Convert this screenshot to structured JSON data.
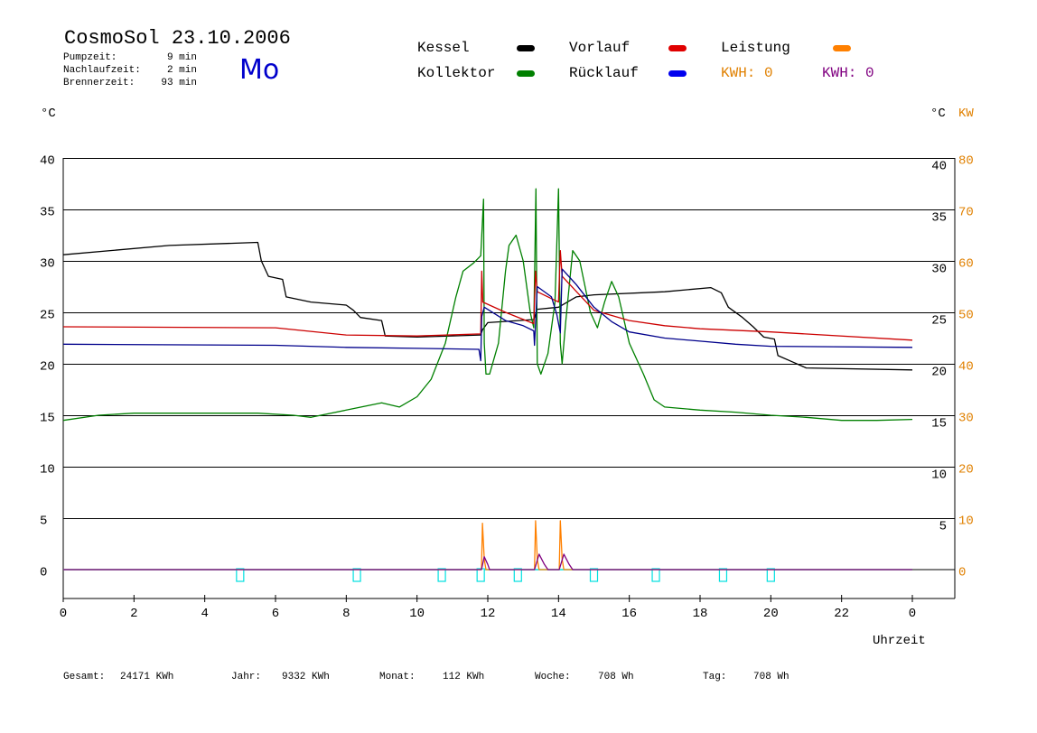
{
  "header": {
    "title": "CosmoSol 23.10.2006",
    "day": "Mo",
    "stats": [
      {
        "label": "Pumpzeit:",
        "value": "9 min"
      },
      {
        "label": "Nachlaufzeit:",
        "value": "2 min"
      },
      {
        "label": "Brennerzeit:",
        "value": "93 min"
      }
    ]
  },
  "legend": {
    "kessel": "Kessel",
    "kollektor": "Kollektor",
    "vorlauf": "Vorlauf",
    "ruecklauf": "Rücklauf",
    "leistung": "Leistung",
    "kwh1": "KWH: 0",
    "kwh2": "KWH: 0"
  },
  "colors": {
    "kessel": "#000000",
    "kollektor": "#008000",
    "vorlauf": "#cc0000",
    "ruecklauf": "#00008b",
    "leistung": "#ff8000",
    "kwh2": "#800080",
    "baseline": "#00e0e0"
  },
  "axis": {
    "left_unit": "°C",
    "right_unit_c": "°C",
    "right_unit_kw": "KW",
    "xlabel": "Uhrzeit"
  },
  "footer": [
    {
      "label": "Gesamt:",
      "value": "24171 KWh"
    },
    {
      "label": "Jahr:",
      "value": "9332 KWh"
    },
    {
      "label": "Monat:",
      "value": "112 KWh"
    },
    {
      "label": "Woche:",
      "value": "708 Wh"
    },
    {
      "label": "Tag:",
      "value": "708 Wh"
    }
  ],
  "chart_data": {
    "type": "line",
    "xlabel": "Uhrzeit",
    "ylabel": "°C",
    "ylabel_right": "KW",
    "xlim": [
      0,
      24
    ],
    "ylim": [
      0,
      40
    ],
    "ylim_right_kw": [
      0,
      80
    ],
    "x_ticks": [
      "0",
      "2",
      "4",
      "6",
      "8",
      "10",
      "12",
      "14",
      "16",
      "18",
      "20",
      "22",
      "0"
    ],
    "y_ticks_left": [
      "0",
      "5",
      "10",
      "15",
      "20",
      "25",
      "30",
      "35",
      "40"
    ],
    "y_ticks_right_c": [
      "",
      "5",
      "10",
      "15",
      "20",
      "25",
      "30",
      "35",
      "40"
    ],
    "y_ticks_right_kw": [
      "0",
      "10",
      "20",
      "30",
      "40",
      "50",
      "60",
      "70",
      "80"
    ],
    "grid": true,
    "series": [
      {
        "name": "Kessel",
        "color": "#000000",
        "points": [
          [
            0,
            30.6
          ],
          [
            3,
            31.5
          ],
          [
            5.5,
            31.8
          ],
          [
            5.6,
            30
          ],
          [
            5.8,
            28.5
          ],
          [
            6.2,
            28.2
          ],
          [
            6.3,
            26.5
          ],
          [
            7,
            26
          ],
          [
            8,
            25.7
          ],
          [
            8.2,
            25.2
          ],
          [
            8.4,
            24.5
          ],
          [
            9,
            24.2
          ],
          [
            9.1,
            22.7
          ],
          [
            10,
            22.6
          ],
          [
            11.8,
            22.8
          ],
          [
            11.85,
            23.3
          ],
          [
            12,
            24
          ],
          [
            13.3,
            24.3
          ],
          [
            13.4,
            25.3
          ],
          [
            14,
            25.5
          ],
          [
            14.5,
            26.5
          ],
          [
            15,
            26.7
          ],
          [
            17,
            27
          ],
          [
            18.3,
            27.4
          ],
          [
            18.6,
            26.9
          ],
          [
            18.8,
            25.5
          ],
          [
            19.2,
            24.5
          ],
          [
            19.5,
            23.6
          ],
          [
            19.8,
            22.6
          ],
          [
            20.1,
            22.4
          ],
          [
            20.2,
            20.8
          ],
          [
            20.6,
            20.2
          ],
          [
            21,
            19.6
          ],
          [
            24,
            19.4
          ]
        ]
      },
      {
        "name": "Kollektor",
        "color": "#008000",
        "points": [
          [
            0,
            14.5
          ],
          [
            1,
            15
          ],
          [
            2,
            15.2
          ],
          [
            4,
            15.2
          ],
          [
            5.5,
            15.2
          ],
          [
            6.5,
            15
          ],
          [
            7,
            14.8
          ],
          [
            8,
            15.5
          ],
          [
            9,
            16.2
          ],
          [
            9.5,
            15.8
          ],
          [
            10,
            16.8
          ],
          [
            10.4,
            18.5
          ],
          [
            10.8,
            22
          ],
          [
            11.1,
            26.5
          ],
          [
            11.3,
            29
          ],
          [
            11.6,
            29.8
          ],
          [
            11.8,
            30.5
          ],
          [
            11.88,
            36
          ],
          [
            11.9,
            22
          ],
          [
            11.95,
            19
          ],
          [
            12.05,
            19
          ],
          [
            12.3,
            22
          ],
          [
            12.5,
            29
          ],
          [
            12.6,
            31.5
          ],
          [
            12.8,
            32.5
          ],
          [
            13,
            30
          ],
          [
            13.2,
            25
          ],
          [
            13.3,
            23.5
          ],
          [
            13.36,
            37
          ],
          [
            13.4,
            20
          ],
          [
            13.5,
            19
          ],
          [
            13.7,
            21
          ],
          [
            13.9,
            26
          ],
          [
            14.0,
            37
          ],
          [
            14.05,
            22
          ],
          [
            14.1,
            20
          ],
          [
            14.2,
            24
          ],
          [
            14.4,
            31
          ],
          [
            14.6,
            30
          ],
          [
            14.9,
            25
          ],
          [
            15.1,
            23.5
          ],
          [
            15.3,
            26
          ],
          [
            15.5,
            28
          ],
          [
            15.7,
            26.5
          ],
          [
            16,
            22
          ],
          [
            16.4,
            19
          ],
          [
            16.7,
            16.5
          ],
          [
            17,
            15.8
          ],
          [
            18,
            15.5
          ],
          [
            19,
            15.3
          ],
          [
            20,
            15
          ],
          [
            21,
            14.8
          ],
          [
            22,
            14.5
          ],
          [
            23,
            14.5
          ],
          [
            24,
            14.6
          ]
        ]
      },
      {
        "name": "Vorlauf",
        "color": "#cc0000",
        "points": [
          [
            0,
            23.6
          ],
          [
            6,
            23.5
          ],
          [
            8,
            22.8
          ],
          [
            10,
            22.7
          ],
          [
            11.8,
            22.9
          ],
          [
            11.83,
            29
          ],
          [
            11.86,
            26
          ],
          [
            12.5,
            25
          ],
          [
            13.3,
            23.9
          ],
          [
            13.35,
            29
          ],
          [
            13.4,
            27
          ],
          [
            14,
            26
          ],
          [
            14.05,
            31
          ],
          [
            14.1,
            28.5
          ],
          [
            15,
            25.2
          ],
          [
            16,
            24.2
          ],
          [
            17,
            23.7
          ],
          [
            18,
            23.4
          ],
          [
            20,
            23.1
          ],
          [
            24,
            22.3
          ]
        ]
      },
      {
        "name": "Rücklauf",
        "color": "#00008b",
        "points": [
          [
            0,
            21.9
          ],
          [
            6,
            21.8
          ],
          [
            8,
            21.6
          ],
          [
            10,
            21.5
          ],
          [
            11.75,
            21.4
          ],
          [
            11.8,
            20.3
          ],
          [
            11.83,
            24.6
          ],
          [
            11.9,
            25.5
          ],
          [
            12.5,
            24.2
          ],
          [
            13,
            23.7
          ],
          [
            13.3,
            23.2
          ],
          [
            13.32,
            21.8
          ],
          [
            13.4,
            27.5
          ],
          [
            13.8,
            26.5
          ],
          [
            13.95,
            24.8
          ],
          [
            14.05,
            23
          ],
          [
            14.1,
            29.2
          ],
          [
            14.5,
            27.7
          ],
          [
            15,
            25.5
          ],
          [
            15.5,
            24.1
          ],
          [
            16,
            23.1
          ],
          [
            17,
            22.5
          ],
          [
            18,
            22.2
          ],
          [
            19,
            21.9
          ],
          [
            20,
            21.7
          ],
          [
            24,
            21.6
          ]
        ]
      },
      {
        "name": "Leistung",
        "color": "#ff8000",
        "unit": "KW",
        "points": [
          [
            0,
            0
          ],
          [
            11.82,
            0
          ],
          [
            11.85,
            9
          ],
          [
            11.9,
            2
          ],
          [
            11.95,
            0
          ],
          [
            13.32,
            0
          ],
          [
            13.35,
            9.5
          ],
          [
            13.4,
            2
          ],
          [
            13.45,
            0
          ],
          [
            14.02,
            0
          ],
          [
            14.05,
            9.5
          ],
          [
            14.1,
            2
          ],
          [
            14.15,
            0
          ],
          [
            24,
            0
          ]
        ]
      },
      {
        "name": "KWH",
        "color": "#800080",
        "unit": "KW",
        "points": [
          [
            0,
            0
          ],
          [
            11.82,
            0
          ],
          [
            11.9,
            2.5
          ],
          [
            12,
            1
          ],
          [
            12.05,
            0
          ],
          [
            13.32,
            0
          ],
          [
            13.45,
            3
          ],
          [
            13.6,
            1
          ],
          [
            13.7,
            0
          ],
          [
            14.02,
            0
          ],
          [
            14.15,
            3
          ],
          [
            14.3,
            1
          ],
          [
            14.4,
            0
          ],
          [
            24,
            0
          ]
        ]
      }
    ],
    "pump_markers_hours": [
      5,
      8.3,
      10.7,
      11.8,
      12.85,
      15,
      16.75,
      18.65,
      20
    ]
  }
}
